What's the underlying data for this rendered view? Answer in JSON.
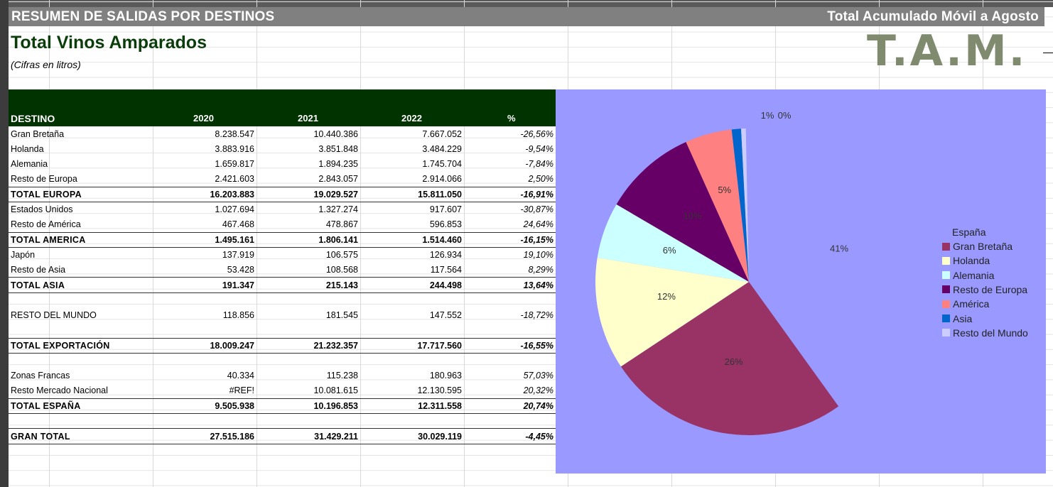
{
  "header": {
    "left_title": "RESUMEN DE SALIDAS POR DESTINOS",
    "right_title": "Total Acumulado Móvil a Agosto"
  },
  "heading": "Total Vinos Amparados",
  "subheading": "(Cifras en litros)",
  "logo": "T.A.M.",
  "table": {
    "columns": [
      "DESTINO",
      "2020",
      "2021",
      "2022",
      "%"
    ],
    "rows": [
      {
        "type": "data",
        "cells": [
          "Gran Bretaña",
          "8.238.547",
          "10.440.386",
          "7.667.052",
          "-26,56%"
        ]
      },
      {
        "type": "data",
        "cells": [
          "Holanda",
          "3.883.916",
          "3.851.848",
          "3.484.229",
          "-9,54%"
        ]
      },
      {
        "type": "data",
        "cells": [
          "Alemania",
          "1.659.817",
          "1.894.235",
          "1.745.704",
          "-7,84%"
        ]
      },
      {
        "type": "data",
        "cells": [
          "Resto de Europa",
          "2.421.603",
          "2.843.057",
          "2.914.066",
          "2,50%"
        ]
      },
      {
        "type": "total",
        "cells": [
          "TOTAL EUROPA",
          "16.203.883",
          "19.029.527",
          "15.811.050",
          "-16,91%"
        ]
      },
      {
        "type": "data",
        "cells": [
          "Estados Unidos",
          "1.027.694",
          "1.327.274",
          "917.607",
          "-30,87%"
        ]
      },
      {
        "type": "data",
        "cells": [
          "Resto de América",
          "467.468",
          "478.867",
          "596.853",
          "24,64%"
        ]
      },
      {
        "type": "total",
        "cells": [
          "TOTAL AMERICA",
          "1.495.161",
          "1.806.141",
          "1.514.460",
          "-16,15%"
        ]
      },
      {
        "type": "data",
        "cells": [
          "Japón",
          "137.919",
          "106.575",
          "126.934",
          "19,10%"
        ]
      },
      {
        "type": "data",
        "cells": [
          "Resto de Asia",
          "53.428",
          "108.568",
          "117.564",
          "8,29%"
        ]
      },
      {
        "type": "total",
        "cells": [
          "TOTAL ASIA",
          "191.347",
          "215.143",
          "244.498",
          "13,64%"
        ]
      },
      {
        "type": "blank",
        "cells": [
          "",
          "",
          "",
          "",
          ""
        ]
      },
      {
        "type": "data",
        "cells": [
          "RESTO DEL MUNDO",
          "118.856",
          "181.545",
          "147.552",
          "-18,72%"
        ]
      },
      {
        "type": "blank",
        "cells": [
          "",
          "",
          "",
          "",
          ""
        ]
      },
      {
        "type": "total",
        "cells": [
          "TOTAL EXPORTACIÓN",
          "18.009.247",
          "21.232.357",
          "17.717.560",
          "-16,55%"
        ]
      },
      {
        "type": "blank",
        "cells": [
          "",
          "",
          "",
          "",
          ""
        ]
      },
      {
        "type": "data",
        "cells": [
          "Zonas Francas",
          "40.334",
          "115.238",
          "180.963",
          "57,03%"
        ]
      },
      {
        "type": "data",
        "cells": [
          "Resto Mercado Nacional",
          "#REF!",
          "10.081.615",
          "12.130.595",
          "20,32%"
        ]
      },
      {
        "type": "total",
        "cells": [
          "TOTAL ESPAÑA",
          "9.505.938",
          "10.196.853",
          "12.311.558",
          "20,74%"
        ]
      },
      {
        "type": "blank",
        "cells": [
          "",
          "",
          "",
          "",
          ""
        ]
      },
      {
        "type": "total",
        "cells": [
          "GRAN TOTAL",
          "27.515.186",
          "31.429.211",
          "30.029.119",
          "-4,45%"
        ]
      }
    ]
  },
  "chart_data": {
    "type": "pie",
    "title": "",
    "legend_title": "España",
    "legend_position": "right",
    "slices": [
      {
        "label": "España",
        "value": 41,
        "display": "41%",
        "color": "#9999ff"
      },
      {
        "label": "Gran Bretaña",
        "value": 26,
        "display": "26%",
        "color": "#993366"
      },
      {
        "label": "Holanda",
        "value": 12,
        "display": "12%",
        "color": "#ffffcc"
      },
      {
        "label": "Alemania",
        "value": 6,
        "display": "6%",
        "color": "#ccffff"
      },
      {
        "label": "Resto de Europa",
        "value": 10,
        "display": "10%",
        "color": "#660066"
      },
      {
        "label": "América",
        "value": 5,
        "display": "5%",
        "color": "#ff8080"
      },
      {
        "label": "Asia",
        "value": 1,
        "display": "1%",
        "color": "#0066cc"
      },
      {
        "label": "Resto del Mundo",
        "value": 0.5,
        "display": "0%",
        "color": "#ccccff"
      }
    ],
    "legend": [
      "Gran Bretaña",
      "Holanda",
      "Alemania",
      "Resto de Europa",
      "América",
      "Asia",
      "Resto del Mundo"
    ]
  }
}
